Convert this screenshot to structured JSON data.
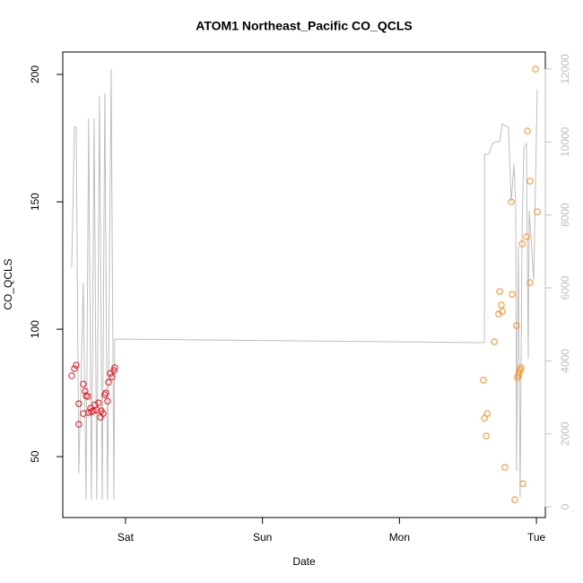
{
  "chart_data": {
    "type": "scatter",
    "title": "ATOM1 Northeast_Pacific CO_QCLS",
    "x_label": "Date",
    "y_label": "CO_QCLS",
    "xlim": [
      0.542,
      4.065
    ],
    "xticks": [
      {
        "value": 1,
        "label": "Sat"
      },
      {
        "value": 2,
        "label": "Sun"
      },
      {
        "value": 3,
        "label": "Mon"
      },
      {
        "value": 4,
        "label": "Tue"
      }
    ],
    "ylim": [
      26.1,
      208.8
    ],
    "yticks": [
      50,
      100,
      150,
      200
    ],
    "y2lim": [
      -295,
      12467
    ],
    "y2ticks": [
      0,
      2000,
      4000,
      6000,
      8000,
      10000,
      12000
    ],
    "y2_color": "#bebebe",
    "series": [
      {
        "type": "scatter",
        "color": "#e8141c",
        "x": [
          0.607,
          0.627,
          0.64,
          0.659,
          0.659,
          0.692,
          0.692,
          0.705,
          0.712,
          0.725,
          0.731,
          0.745,
          0.751,
          0.764,
          0.777,
          0.79,
          0.803,
          0.817,
          0.823,
          0.836,
          0.849,
          0.856,
          0.869,
          0.876,
          0.889,
          0.902,
          0.915,
          0.921
        ],
        "values": [
          81.7,
          84.5,
          85.9,
          70.8,
          62.7,
          78.5,
          66.9,
          75.7,
          73.9,
          73.6,
          67.3,
          69.0,
          67.6,
          68.0,
          70.4,
          68.3,
          71.1,
          65.5,
          68.0,
          66.9,
          74.3,
          75.0,
          71.8,
          79.2,
          82.7,
          81.3,
          83.8,
          84.9
        ]
      },
      {
        "type": "scatter",
        "color": "#ff8c1a",
        "x": [
          3.613,
          3.62,
          3.633,
          3.64,
          3.692,
          3.724,
          3.731,
          3.744,
          3.751,
          3.77,
          3.816,
          3.823,
          3.842,
          3.855,
          3.862,
          3.868,
          3.875,
          3.881,
          3.888,
          3.895,
          3.901,
          3.927,
          3.934,
          3.953,
          3.953,
          3.993,
          4.006
        ],
        "values": [
          80.0,
          65.1,
          58.1,
          66.9,
          95.1,
          106.0,
          114.8,
          109.5,
          107.0,
          45.8,
          150.0,
          113.7,
          33.1,
          101.4,
          81.0,
          82.0,
          83.1,
          84.2,
          84.9,
          133.5,
          39.4,
          136.3,
          177.8,
          118.3,
          158.1,
          202.1,
          146.1
        ]
      },
      {
        "type": "line",
        "axis": "y2",
        "color": "#bebebe",
        "x": [
          0.607,
          0.627,
          0.64,
          0.659,
          0.692,
          0.712,
          0.731,
          0.751,
          0.771,
          0.79,
          0.81,
          0.83,
          0.849,
          0.869,
          0.895,
          0.915,
          0.921,
          3.62,
          3.621,
          3.652,
          3.678,
          3.705,
          3.731,
          3.751,
          3.796,
          3.816,
          3.836,
          3.849,
          3.855,
          3.868,
          3.881,
          3.895,
          3.908,
          3.927,
          3.94,
          3.947,
          3.96,
          3.98,
          4.006
        ],
        "values": [
          6565,
          10401,
          10401,
          910,
          6147,
          197,
          10647,
          197,
          10647,
          197,
          11262,
          197,
          11335,
          197,
          12000,
          197,
          4598,
          4500,
          9663,
          9663,
          9958,
          10007,
          10007,
          10499,
          10401,
          8360,
          9393,
          8237,
          984,
          7131,
          246,
          7500,
          9835,
          9958,
          4057,
          8114,
          7377,
          6221,
          11434
        ]
      }
    ]
  }
}
